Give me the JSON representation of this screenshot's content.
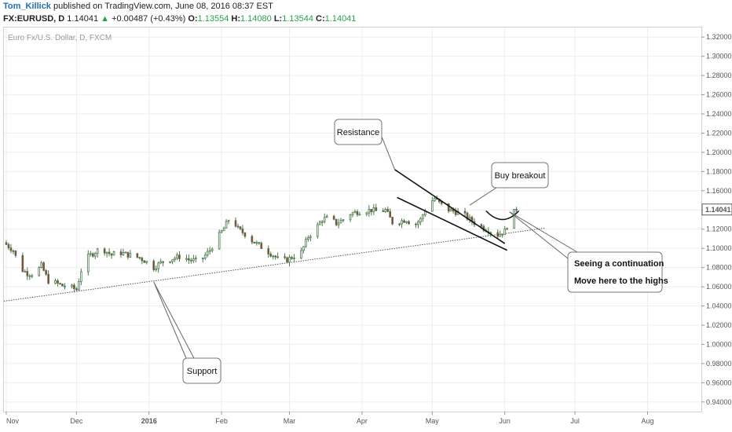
{
  "header": {
    "author": "Tom_Killick",
    "published_text": "published on TradingView.com, June 08, 2016 08:37 EST",
    "symbol": "FX:EURUSD, D",
    "last": "1.14041",
    "change_arrow": "▲",
    "change": "+0.00487 (+0.43%)",
    "o_label": "O:",
    "o_value": "1.13554",
    "h_label": "H:",
    "h_value": "1.14080",
    "l_label": "L:",
    "l_value": "1.13544",
    "c_label": "C:",
    "c_value": "1.14041"
  },
  "chart_data": {
    "type": "candlestick",
    "instrument_label": "Euro Fx/U.S. Dollar, D, FXCM",
    "ylim": [
      0.93,
      1.33
    ],
    "y_ticks": [
      "1.32000",
      "1.30000",
      "1.28000",
      "1.26000",
      "1.24000",
      "1.22000",
      "1.20000",
      "1.18000",
      "1.16000",
      "1.14000",
      "1.12000",
      "1.10000",
      "1.08000",
      "1.06000",
      "1.04000",
      "1.02000",
      "1.00000",
      "0.98000",
      "0.96000",
      "0.94000"
    ],
    "last_price": "1.14041",
    "x_ticks": [
      {
        "label": "Nov",
        "x": 0
      },
      {
        "label": "Dec",
        "x": 30
      },
      {
        "label": "2016",
        "x": 61,
        "bold": true
      },
      {
        "label": "Feb",
        "x": 92
      },
      {
        "label": "Mar",
        "x": 121
      },
      {
        "label": "Apr",
        "x": 152
      },
      {
        "label": "May",
        "x": 182
      },
      {
        "label": "Jun",
        "x": 213
      },
      {
        "label": "Jul",
        "x": 243
      },
      {
        "label": "Aug",
        "x": 274
      }
    ],
    "xlim": [
      -1,
      297
    ],
    "closes": [
      {
        "x": 0,
        "c": 1.104
      },
      {
        "x": 3,
        "c": 1.098
      },
      {
        "x": 6,
        "c": 1.079
      },
      {
        "x": 9,
        "c": 1.074
      },
      {
        "x": 12,
        "c": 1.073
      },
      {
        "x": 15,
        "c": 1.082
      },
      {
        "x": 18,
        "c": 1.066
      },
      {
        "x": 21,
        "c": 1.064
      },
      {
        "x": 24,
        "c": 1.061
      },
      {
        "x": 27,
        "c": 1.06
      },
      {
        "x": 30,
        "c": 1.057
      },
      {
        "x": 33,
        "c": 1.087
      },
      {
        "x": 36,
        "c": 1.093
      },
      {
        "x": 39,
        "c": 1.098
      },
      {
        "x": 42,
        "c": 1.098
      },
      {
        "x": 45,
        "c": 1.093
      },
      {
        "x": 48,
        "c": 1.096
      },
      {
        "x": 51,
        "c": 1.094
      },
      {
        "x": 54,
        "c": 1.092
      },
      {
        "x": 57,
        "c": 1.09
      },
      {
        "x": 60,
        "c": 1.086
      },
      {
        "x": 63,
        "c": 1.08
      },
      {
        "x": 66,
        "c": 1.085
      },
      {
        "x": 69,
        "c": 1.088
      },
      {
        "x": 72,
        "c": 1.09
      },
      {
        "x": 75,
        "c": 1.092
      },
      {
        "x": 78,
        "c": 1.088
      },
      {
        "x": 81,
        "c": 1.087
      },
      {
        "x": 84,
        "c": 1.09
      },
      {
        "x": 87,
        "c": 1.098
      },
      {
        "x": 90,
        "c": 1.11
      },
      {
        "x": 93,
        "c": 1.121
      },
      {
        "x": 96,
        "c": 1.134
      },
      {
        "x": 99,
        "c": 1.12
      },
      {
        "x": 102,
        "c": 1.115
      },
      {
        "x": 105,
        "c": 1.108
      },
      {
        "x": 108,
        "c": 1.103
      },
      {
        "x": 111,
        "c": 1.098
      },
      {
        "x": 114,
        "c": 1.093
      },
      {
        "x": 117,
        "c": 1.087
      },
      {
        "x": 120,
        "c": 1.088
      },
      {
        "x": 123,
        "c": 1.092
      },
      {
        "x": 126,
        "c": 1.096
      },
      {
        "x": 129,
        "c": 1.112
      },
      {
        "x": 132,
        "c": 1.12
      },
      {
        "x": 135,
        "c": 1.13
      },
      {
        "x": 138,
        "c": 1.132
      },
      {
        "x": 141,
        "c": 1.126
      },
      {
        "x": 144,
        "c": 1.13
      },
      {
        "x": 147,
        "c": 1.136
      },
      {
        "x": 150,
        "c": 1.138
      },
      {
        "x": 153,
        "c": 1.139
      },
      {
        "x": 156,
        "c": 1.14
      },
      {
        "x": 159,
        "c": 1.138
      },
      {
        "x": 162,
        "c": 1.14
      },
      {
        "x": 165,
        "c": 1.127
      },
      {
        "x": 168,
        "c": 1.128
      },
      {
        "x": 171,
        "c": 1.13
      },
      {
        "x": 174,
        "c": 1.123
      },
      {
        "x": 177,
        "c": 1.13
      },
      {
        "x": 180,
        "c": 1.145
      },
      {
        "x": 183,
        "c": 1.152
      },
      {
        "x": 186,
        "c": 1.145
      },
      {
        "x": 189,
        "c": 1.14
      },
      {
        "x": 192,
        "c": 1.138
      },
      {
        "x": 195,
        "c": 1.136
      },
      {
        "x": 198,
        "c": 1.13
      },
      {
        "x": 201,
        "c": 1.125
      },
      {
        "x": 204,
        "c": 1.121
      },
      {
        "x": 207,
        "c": 1.118
      },
      {
        "x": 210,
        "c": 1.114
      },
      {
        "x": 213,
        "c": 1.118
      },
      {
        "x": 216,
        "c": 1.135
      },
      {
        "x": 218,
        "c": 1.1404
      }
    ],
    "drawings": {
      "support_line": {
        "x1": -1,
        "y1": 1.045,
        "x2": 230,
        "y2": 1.121
      },
      "resistance_line_upper": {
        "x1": 166,
        "y1": 1.182,
        "x2": 213,
        "y2": 1.105
      },
      "resistance_line_lower": {
        "x1": 167,
        "y1": 1.153,
        "x2": 214,
        "y2": 1.098
      },
      "arc": {
        "x1": 205,
        "x2": 219,
        "top": 1.139,
        "bottom": 1.13
      },
      "callout_resistance_anchor": {
        "x": 166,
        "y": 1.182
      },
      "callout_buy_anchor": {
        "x": 198,
        "y": 1.145
      },
      "callout_support_anchor": {
        "x": 63,
        "y": 1.065
      },
      "callout_continuation_anchor": {
        "x": 215,
        "y": 1.138
      }
    }
  },
  "annotations": {
    "resistance": "Resistance",
    "buy_breakout": "Buy breakout",
    "support": "Support",
    "continuation_line1": "Seeing a continuation",
    "continuation_line2": "Move here to the highs"
  },
  "colors": {
    "up_fill": "#ffffff",
    "down_fill": "#c0262b",
    "candle_border": "#4e7a4e",
    "grid": "#eeeeee",
    "last_price_bg": "#ffffff"
  }
}
